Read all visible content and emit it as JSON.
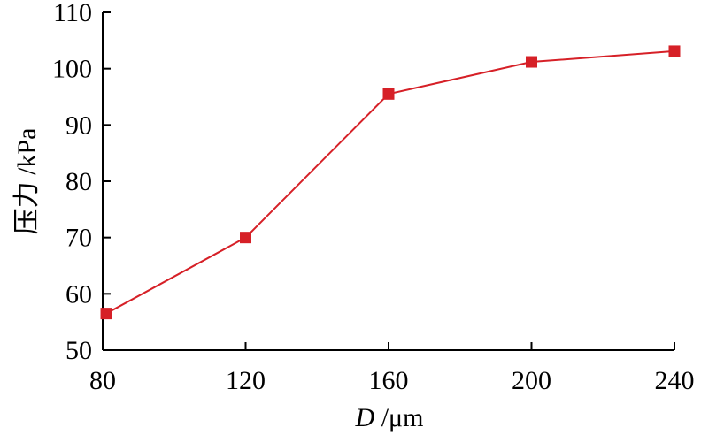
{
  "chart_data": {
    "type": "line",
    "xlabel_italic": "D",
    "xlabel_rest": " /μm",
    "ylabel": "压力 /kPa",
    "xlim": [
      80,
      240
    ],
    "ylim": [
      50,
      110
    ],
    "xticks": [
      80,
      120,
      160,
      200,
      240
    ],
    "yticks": [
      50,
      60,
      70,
      80,
      90,
      100,
      110
    ],
    "grid": false,
    "series": [
      {
        "color": "#d62027",
        "marker": "square",
        "x": [
          81,
          120,
          160,
          200,
          240
        ],
        "y": [
          56.5,
          70,
          95.5,
          101.2,
          103.1
        ]
      }
    ]
  }
}
